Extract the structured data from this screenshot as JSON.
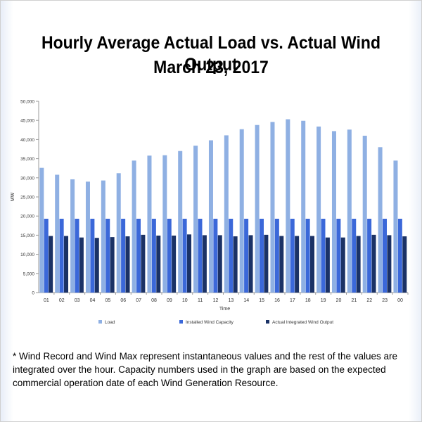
{
  "title": "Hourly Average Actual Load vs. Actual Wind Output",
  "subtitle": "March 23, 2017",
  "footnote": "* Wind Record and Wind Max represent instantaneous values and the rest of the values are integrated over the hour. Capacity numbers used in the graph are based on the expected commercial operation date of each Wind Generation Resource.",
  "colors": {
    "load": "#8fb0e3",
    "capacity": "#3b68d9",
    "actual": "#1b3266"
  },
  "chart_data": {
    "type": "bar",
    "title": "",
    "xlabel": "Time",
    "ylabel": "MW",
    "ylim": [
      0,
      50000
    ],
    "yticks": [
      "0",
      "5,000",
      "10,000",
      "15,000",
      "20,000",
      "25,000",
      "30,000",
      "35,000",
      "40,000",
      "45,000",
      "50,000"
    ],
    "grid": false,
    "legend": "bottom",
    "categories": [
      "01",
      "02",
      "03",
      "04",
      "05",
      "06",
      "07",
      "08",
      "09",
      "10",
      "11",
      "12",
      "13",
      "14",
      "15",
      "16",
      "17",
      "18",
      "19",
      "20",
      "21",
      "22",
      "23",
      "00"
    ],
    "series": [
      {
        "name": "Load",
        "values": [
          32600,
          30800,
          29600,
          29000,
          29300,
          31200,
          34500,
          35800,
          35900,
          37000,
          38400,
          39800,
          41100,
          42700,
          43800,
          44600,
          45300,
          44900,
          43400,
          42200,
          42600,
          41000,
          38000,
          34500
        ]
      },
      {
        "name": "Installed Wind Capacity",
        "values": [
          19300,
          19300,
          19300,
          19300,
          19300,
          19300,
          19300,
          19300,
          19300,
          19300,
          19300,
          19300,
          19300,
          19300,
          19300,
          19300,
          19300,
          19300,
          19300,
          19300,
          19300,
          19300,
          19300,
          19300
        ]
      },
      {
        "name": "Actual Integrated Wind Output",
        "values": [
          14800,
          14800,
          14400,
          14300,
          14500,
          14700,
          15100,
          14900,
          14900,
          15200,
          15000,
          15000,
          14700,
          15000,
          15100,
          14800,
          14800,
          14800,
          14400,
          14400,
          14800,
          15100,
          15000,
          14700
        ]
      }
    ]
  }
}
